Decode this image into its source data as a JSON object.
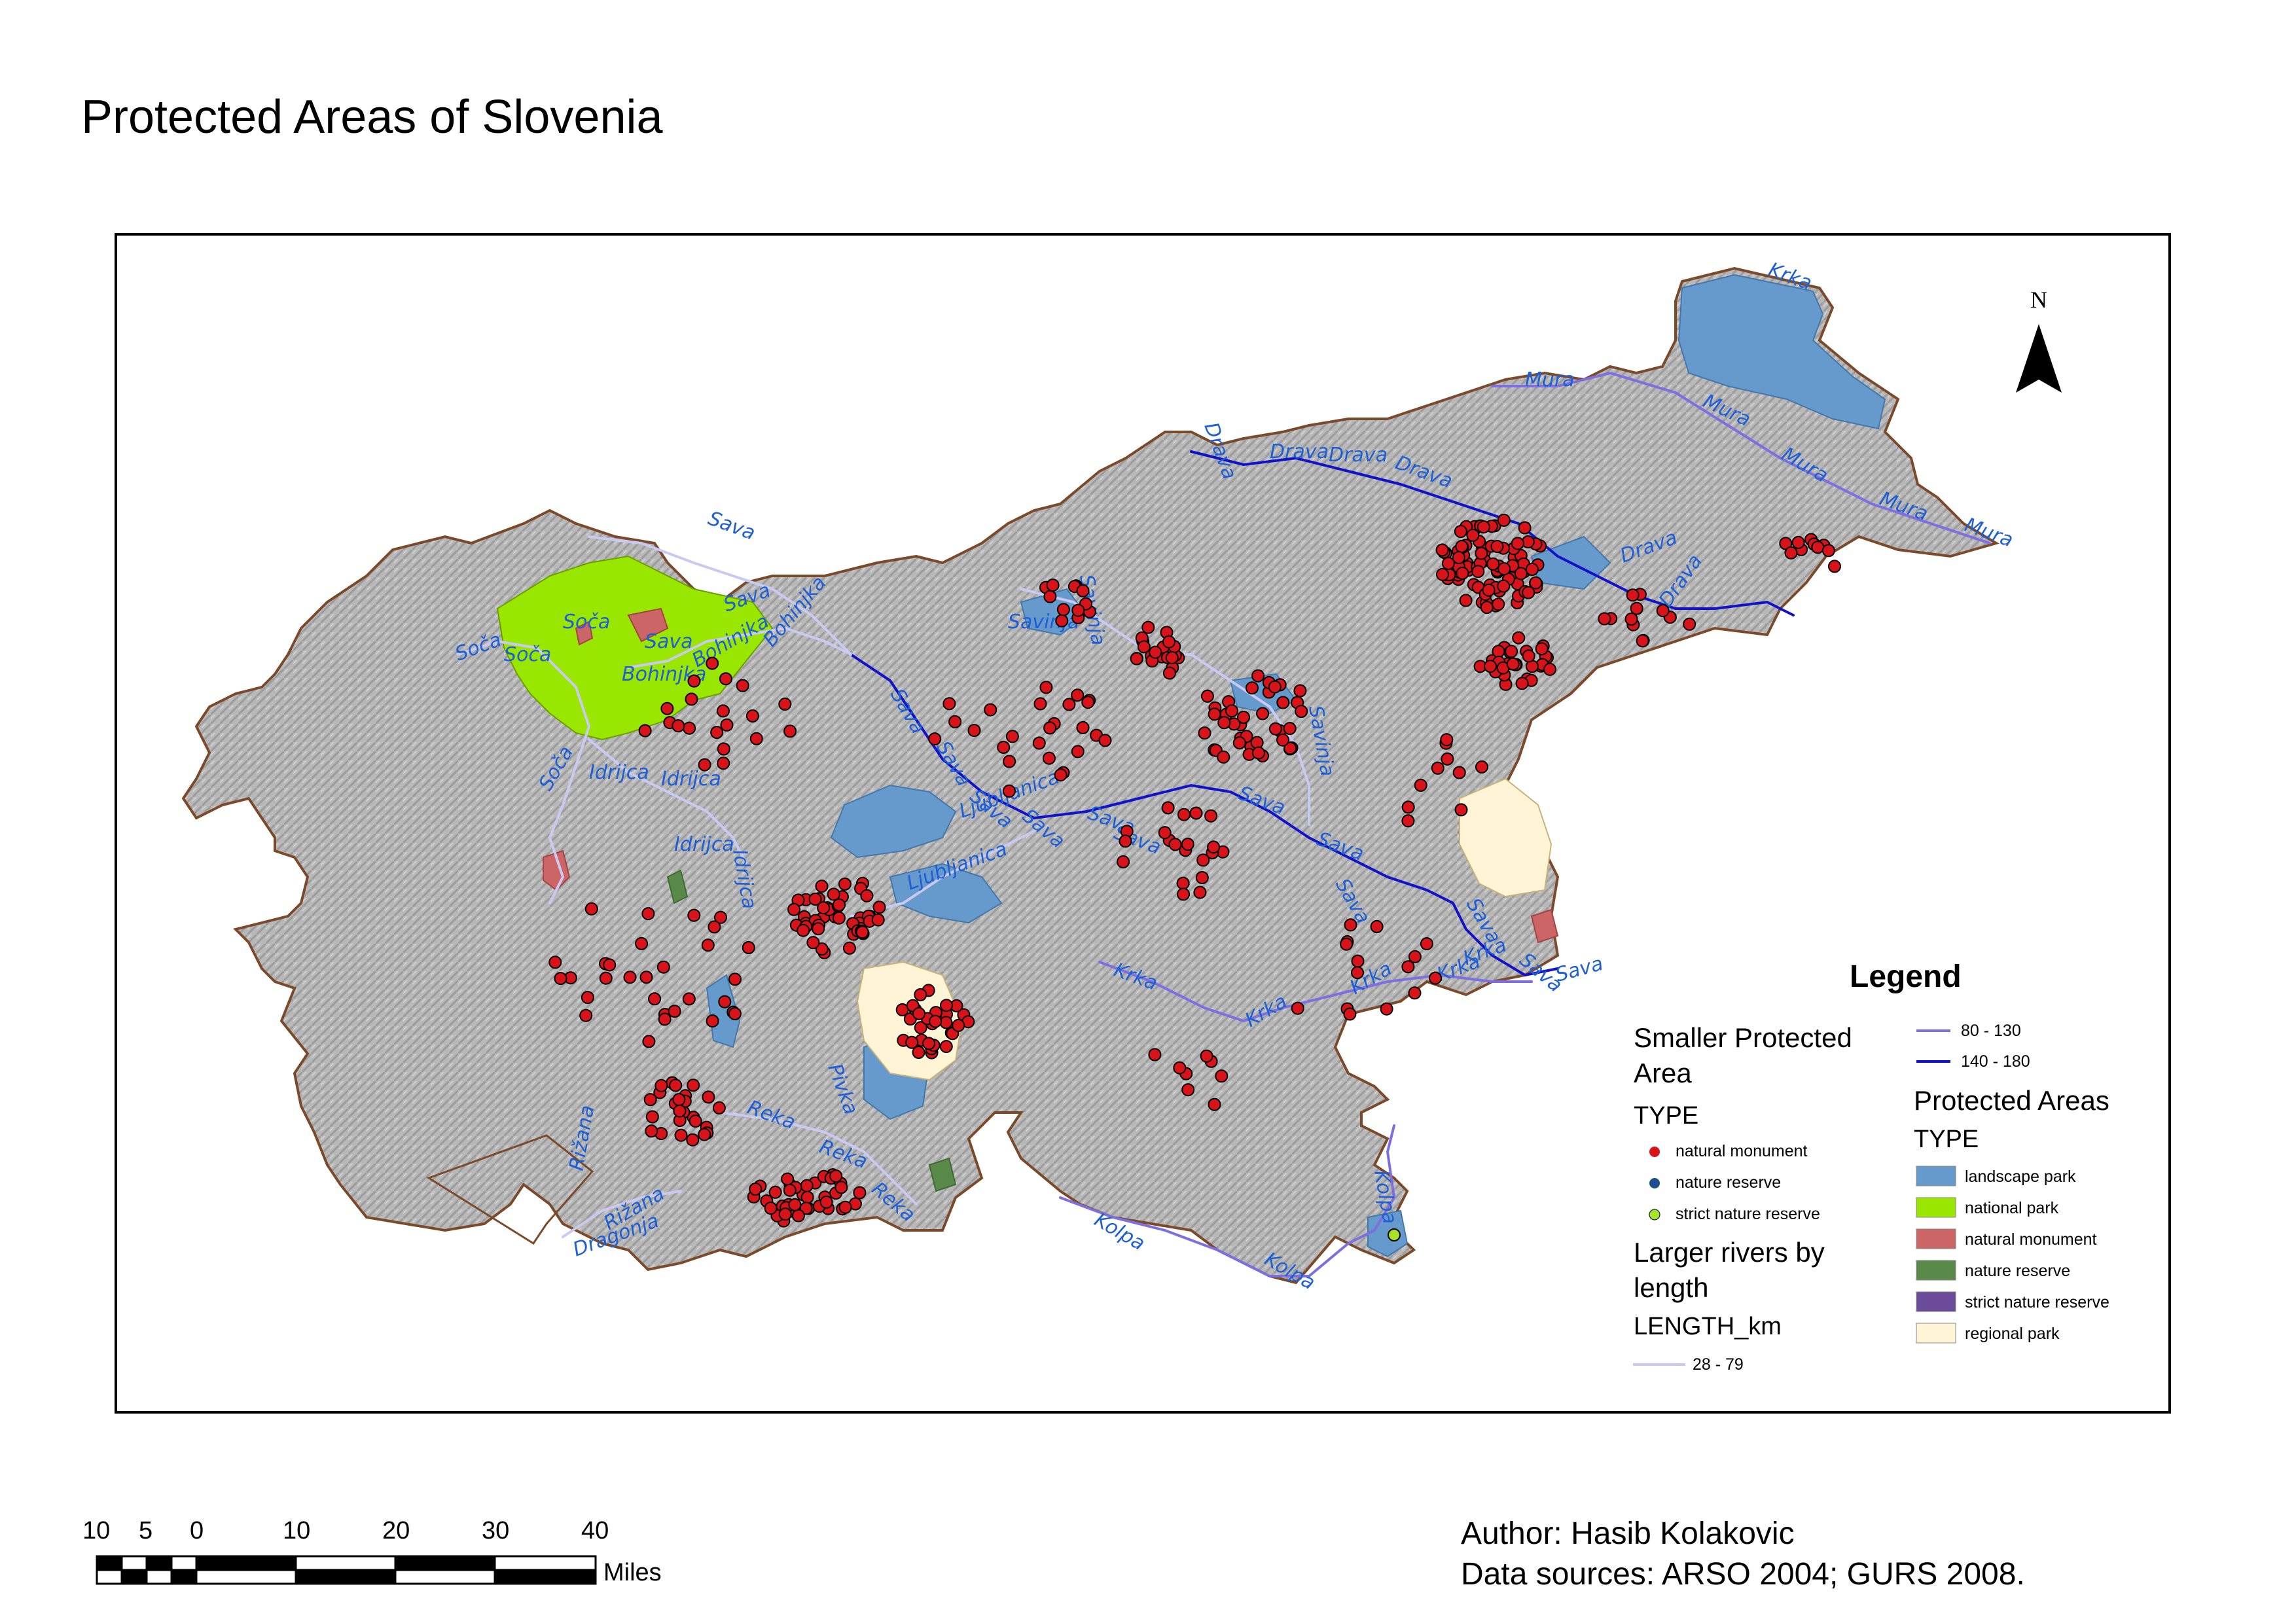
{
  "title": "Protected Areas of Slovenia",
  "north_label": "N",
  "legend": {
    "title": "Legend",
    "smaller_areas": {
      "heading_line1": "Smaller Protected",
      "heading_line2": "Area",
      "field": "TYPE",
      "items": [
        {
          "label": "natural monument",
          "color": "#d9131a"
        },
        {
          "label": "nature reserve",
          "color": "#1f4e8c"
        },
        {
          "label": "strict nature reserve",
          "color": "#a8e22b"
        }
      ]
    },
    "rivers": {
      "heading_line1": "Larger rivers by",
      "heading_line2": "length",
      "field": "LENGTH_km",
      "items": [
        {
          "label": "28 - 79",
          "color": "#c9c9f2"
        },
        {
          "label": "80 - 130",
          "color": "#7d6fe0"
        },
        {
          "label": "140 - 180",
          "color": "#1212c8"
        }
      ]
    },
    "protected_areas": {
      "heading": "Protected Areas",
      "field": "TYPE",
      "items": [
        {
          "label": "landscape park",
          "color": "#6699cc"
        },
        {
          "label": "national park",
          "color": "#99e600"
        },
        {
          "label": "natural monument",
          "color": "#cc6666"
        },
        {
          "label": "nature reserve",
          "color": "#5a8a4a"
        },
        {
          "label": "strict nature reserve",
          "color": "#6b4c9a"
        },
        {
          "label": "regional park",
          "color": "#fff5d6"
        }
      ]
    }
  },
  "river_labels": [
    "Krka",
    "Mura",
    "Mura",
    "Mura",
    "Mura",
    "Mura",
    "Drava",
    "Drava",
    "Drava",
    "Drava",
    "Drava",
    "Drava",
    "Sava",
    "Sava",
    "Sava",
    "Sava",
    "Sava",
    "Sava",
    "Sava",
    "Sava",
    "Sava",
    "Sava",
    "Sava",
    "Sava",
    "Sava",
    "Sava",
    "Sava",
    "Soča",
    "Soča",
    "Soča",
    "Soča",
    "Bohinjka",
    "Bohinjka",
    "Bohinjka",
    "Savinja",
    "Savinja",
    "Savinja",
    "Ljubljanica",
    "Ljubljanica",
    "Idrijca",
    "Idrijca",
    "Idrijca",
    "Idrijca",
    "Reka",
    "Reka",
    "Reka",
    "Pivka",
    "Rižana",
    "Rižana",
    "Dragonja",
    "Krka",
    "Krka",
    "Krka",
    "Krka",
    "Krka",
    "Kolpa",
    "Kolpa",
    "Kolpa"
  ],
  "scale_bar": {
    "ticks": [
      "10",
      "5",
      "0",
      "10",
      "20",
      "30",
      "40"
    ],
    "unit": "Miles"
  },
  "credits": {
    "author": "Author: Hasib Kolakovic",
    "sources": "Data sources: ARSO 2004; GURS 2008."
  },
  "colors": {
    "terrain": "#b4b4b4",
    "border": "#7a4a2a",
    "river_label": "#1f5fd6",
    "point_fill": "#d9131a"
  }
}
